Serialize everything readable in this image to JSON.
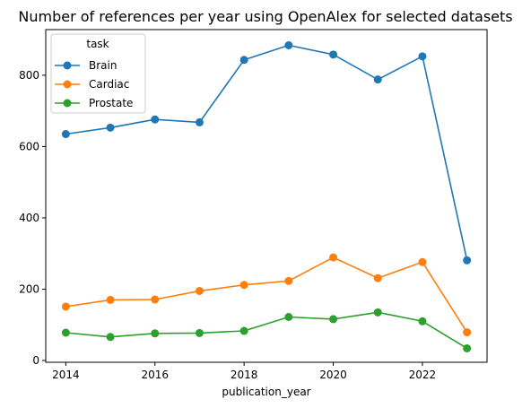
{
  "chart_data": {
    "type": "line",
    "title": "Number of references per year using OpenAlex for selected datasets",
    "xlabel": "publication_year",
    "ylabel": "",
    "x": [
      2014,
      2015,
      2016,
      2017,
      2018,
      2019,
      2020,
      2021,
      2022,
      2023
    ],
    "xlim": [
      2013.55,
      2023.45
    ],
    "ylim": [
      -5,
      928
    ],
    "xticks": [
      2014,
      2016,
      2018,
      2020,
      2022
    ],
    "xtick_labels": [
      "2014",
      "2016",
      "2018",
      "2020",
      "2022"
    ],
    "yticks": [
      0,
      200,
      400,
      600,
      800
    ],
    "ytick_labels": [
      "0",
      "200",
      "400",
      "600",
      "800"
    ],
    "grid": false,
    "legend": {
      "title": "task",
      "placement": "top-left"
    },
    "series": [
      {
        "name": "Brain",
        "color": "#1f77b4",
        "marker": "circle",
        "values": [
          635,
          653,
          676,
          668,
          843,
          884,
          858,
          788,
          853,
          281
        ]
      },
      {
        "name": "Cardiac",
        "color": "#ff7f0e",
        "marker": "circle",
        "values": [
          151,
          170,
          171,
          195,
          212,
          223,
          289,
          231,
          276,
          79
        ]
      },
      {
        "name": "Prostate",
        "color": "#2ca02c",
        "marker": "circle",
        "values": [
          78,
          66,
          76,
          77,
          83,
          122,
          116,
          135,
          110,
          34
        ]
      }
    ]
  }
}
